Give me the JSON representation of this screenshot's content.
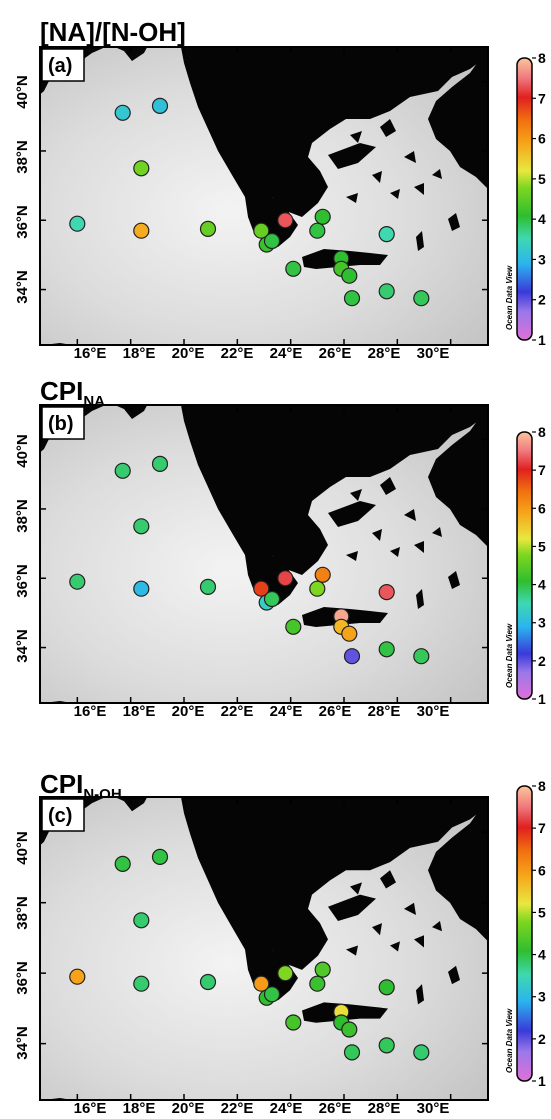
{
  "lon_ticks": [
    "16°E",
    "18°E",
    "20°E",
    "22°E",
    "24°E",
    "26°E",
    "28°E",
    "30°E"
  ],
  "lat_ticks": [
    "34°N",
    "36°N",
    "38°N",
    "40°N"
  ],
  "colorbar_ticks": [
    "1",
    "2",
    "3",
    "4",
    "5",
    "6",
    "7",
    "8"
  ],
  "colorbar_range": [
    1,
    8
  ],
  "map_extent": {
    "lon": [
      14.6,
      31.4
    ],
    "lat": [
      32.4,
      41.0
    ]
  },
  "watermark": "Ocean Data View",
  "colors": {
    "ocean_deep": "#c4c4c4",
    "ocean_shallow": "#e8e8e8",
    "land": "#050505",
    "marker_outline": "#222222"
  },
  "stations": [
    {
      "lon": 16.0,
      "lat": 35.9
    },
    {
      "lon": 17.7,
      "lat": 39.1
    },
    {
      "lon": 19.1,
      "lat": 39.3
    },
    {
      "lon": 18.4,
      "lat": 37.5
    },
    {
      "lon": 18.4,
      "lat": 35.7
    },
    {
      "lon": 20.9,
      "lat": 35.75
    },
    {
      "lon": 22.9,
      "lat": 35.7
    },
    {
      "lon": 23.1,
      "lat": 35.3
    },
    {
      "lon": 23.3,
      "lat": 35.4
    },
    {
      "lon": 23.8,
      "lat": 36.0
    },
    {
      "lon": 24.1,
      "lat": 34.6
    },
    {
      "lon": 25.0,
      "lat": 35.7
    },
    {
      "lon": 25.2,
      "lat": 36.1
    },
    {
      "lon": 25.9,
      "lat": 34.9
    },
    {
      "lon": 25.9,
      "lat": 34.6
    },
    {
      "lon": 26.2,
      "lat": 34.4
    },
    {
      "lon": 26.3,
      "lat": 33.75
    },
    {
      "lon": 27.6,
      "lat": 35.6
    },
    {
      "lon": 27.6,
      "lat": 33.95
    },
    {
      "lon": 28.9,
      "lat": 33.75
    }
  ],
  "panels": [
    {
      "title": "[NA]/[N-OH]",
      "title_sub": "",
      "label": "(a)",
      "values": [
        3.5,
        3.2,
        3.1,
        4.7,
        5.8,
        4.6,
        4.6,
        4.2,
        4.0,
        7.3,
        4.0,
        4.0,
        4.1,
        4.1,
        4.3,
        4.1,
        4.0,
        3.5,
        3.8,
        3.9
      ]
    },
    {
      "title": "CPI",
      "title_sub": "NA",
      "label": "(b)",
      "values": [
        3.8,
        3.8,
        3.8,
        3.8,
        3.0,
        3.8,
        6.8,
        3.3,
        3.9,
        7.2,
        4.3,
        4.8,
        6.3,
        7.8,
        5.7,
        5.9,
        2.0,
        7.3,
        4.0,
        3.9
      ]
    },
    {
      "title": "CPI",
      "title_sub": "N-OH",
      "label": "(c)",
      "values": [
        5.9,
        4.0,
        4.0,
        3.8,
        3.8,
        3.8,
        6.0,
        4.1,
        4.0,
        4.8,
        4.3,
        4.2,
        4.4,
        5.3,
        4.1,
        4.2,
        3.9,
        4.1,
        3.9,
        3.8
      ]
    }
  ]
}
